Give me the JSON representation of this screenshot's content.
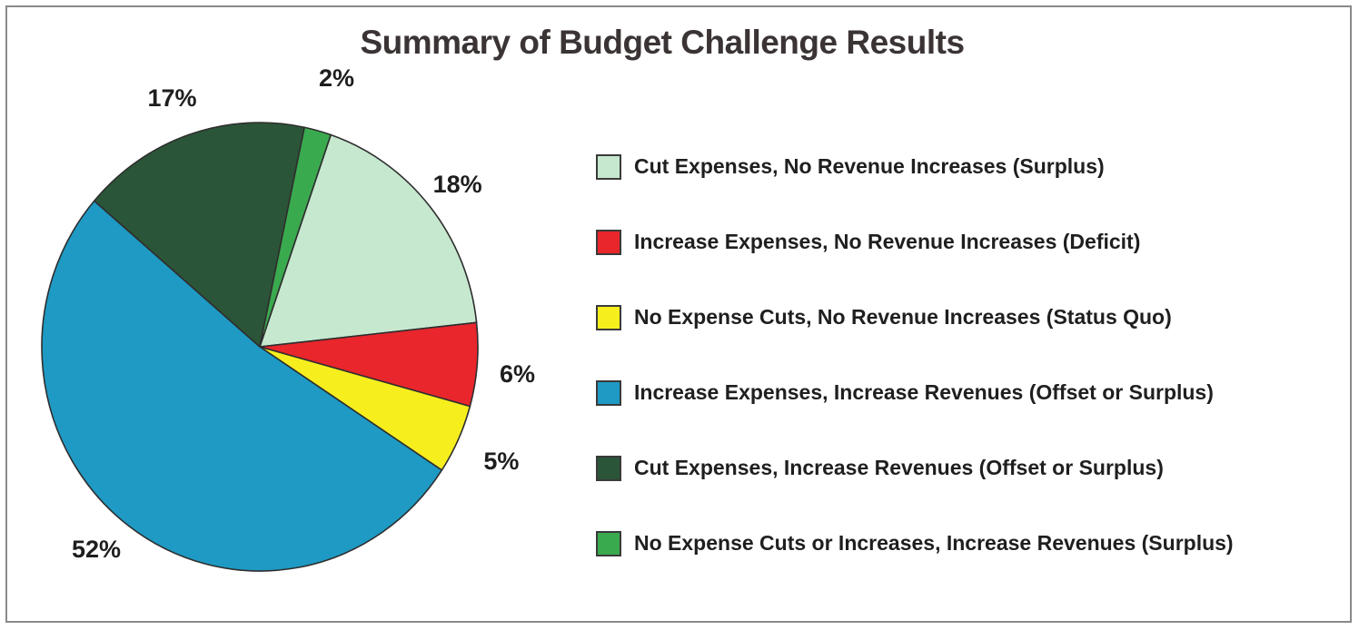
{
  "chart_data": {
    "type": "pie",
    "title": "Summary of Budget Challenge Results",
    "legend_position": "right",
    "slices": [
      {
        "label": "Cut Expenses, No Revenue Increases (Surplus)",
        "value": 18,
        "value_label": "18%",
        "color": "#c6e8cf"
      },
      {
        "label": "Increase Expenses, No Revenue Increases (Deficit)",
        "value": 6,
        "value_label": "6%",
        "color": "#e8262c"
      },
      {
        "label": "No Expense Cuts, No Revenue Increases (Status Quo)",
        "value": 5,
        "value_label": "5%",
        "color": "#f7ee1e"
      },
      {
        "label": "Increase Expenses, Increase Revenues (Offset or Surplus)",
        "value": 52,
        "value_label": "52%",
        "color": "#1e9ac4"
      },
      {
        "label": "Cut Expenses, Increase Revenues (Offset or Surplus)",
        "value": 17,
        "value_label": "17%",
        "color": "#2b5538"
      },
      {
        "label": "No Expense Cuts or Increases, Increase Revenues (Surplus)",
        "value": 2,
        "value_label": "2%",
        "color": "#3aaa4e"
      }
    ]
  }
}
